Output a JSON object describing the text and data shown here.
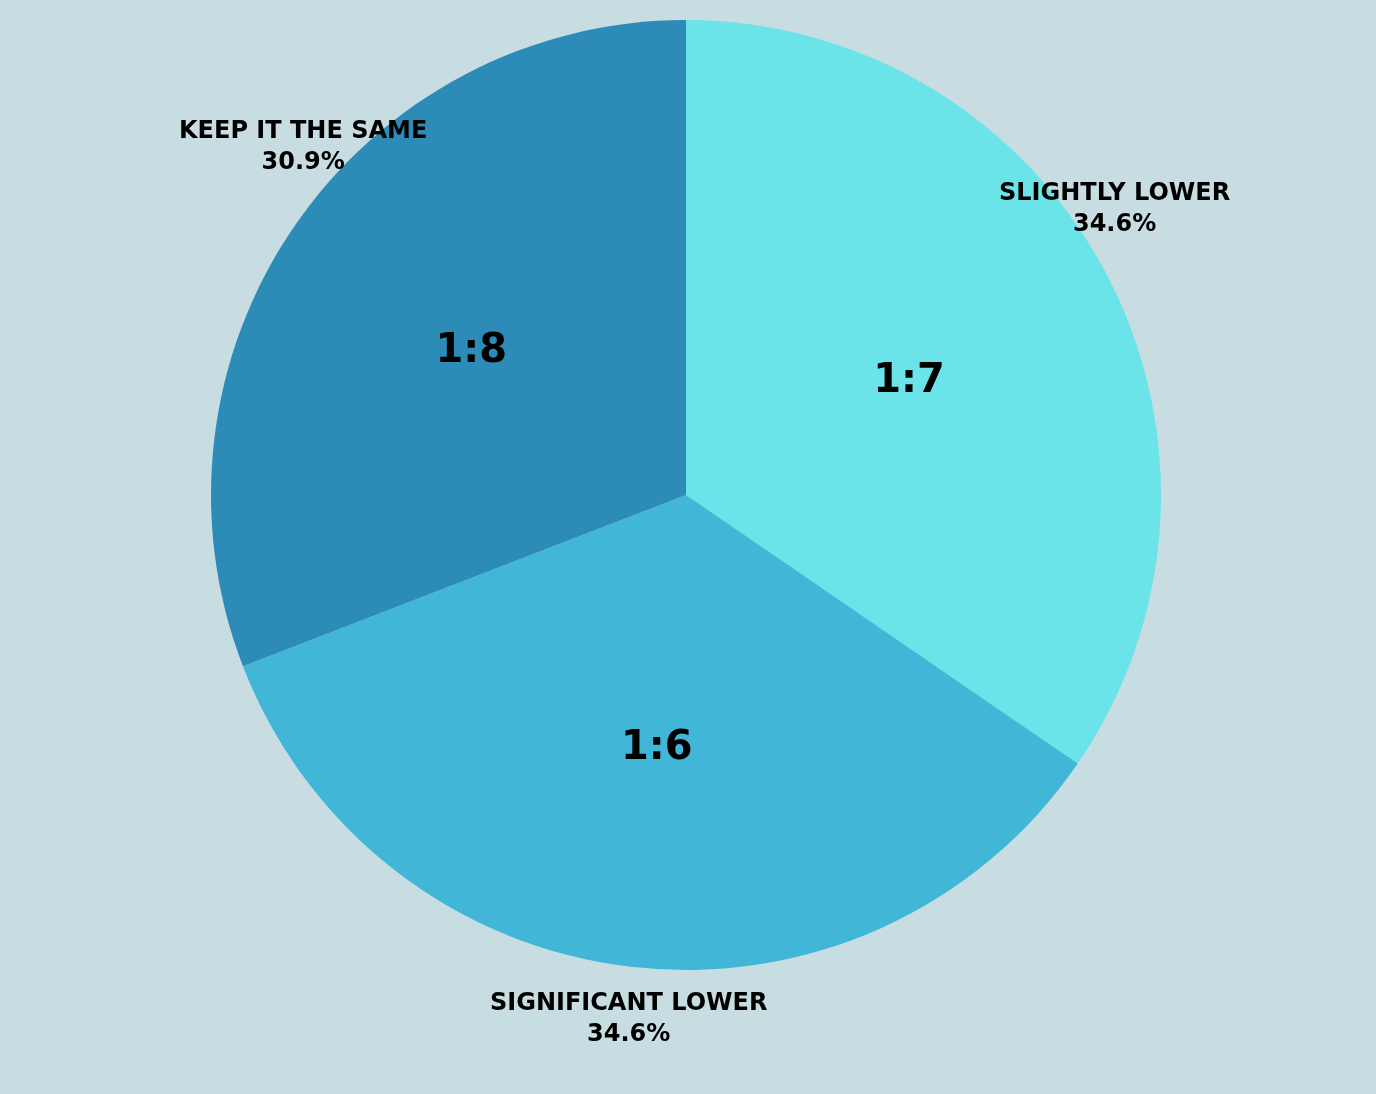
{
  "chart_data": {
    "type": "pie",
    "categories": [
      "SLIGHTLY LOWER",
      "SIGNIFICANT LOWER",
      "KEEP IT THE SAME"
    ],
    "values": [
      34.6,
      34.6,
      30.9
    ],
    "colors": [
      "#6ae4e8",
      "#42b6d6",
      "#2d8bb8"
    ],
    "value_labels": [
      "34.6%",
      "34.6%",
      "30.9%"
    ],
    "annotations": [
      {
        "text": "1:7",
        "x": "SLIGHTLY LOWER"
      },
      {
        "text": "1:6",
        "x": "SIGNIFICANT LOWER"
      },
      {
        "text": "1:8",
        "x": "KEEP IT THE SAME"
      }
    ]
  }
}
